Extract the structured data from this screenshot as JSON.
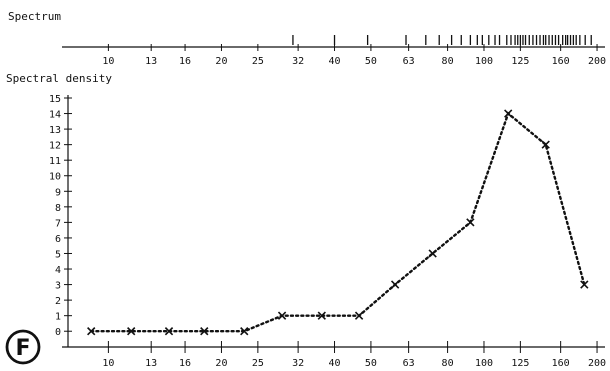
{
  "chart_data": [
    {
      "type": "rug",
      "title": "Spectrum",
      "x_ticks": [
        "10",
        "13",
        "16",
        "20",
        "25",
        "32",
        "40",
        "50",
        "63",
        "80",
        "100",
        "125",
        "160",
        "200"
      ],
      "x_scale": "log",
      "xlim": [
        8,
        210
      ],
      "marks": [
        31,
        40,
        49,
        62,
        70,
        76,
        82,
        87,
        92,
        96,
        99,
        103,
        107,
        110,
        115,
        118,
        121,
        123,
        125,
        127,
        129,
        132,
        135,
        138,
        141,
        144,
        146,
        149,
        152,
        155,
        158,
        162,
        165,
        167,
        170,
        173,
        176,
        180,
        186,
        193
      ]
    },
    {
      "type": "line",
      "ylabel": "Spectral density",
      "x_ticks": [
        "10",
        "13",
        "16",
        "20",
        "25",
        "32",
        "40",
        "50",
        "63",
        "80",
        "100",
        "125",
        "160",
        "200"
      ],
      "x_scale": "log",
      "xlim": [
        8,
        210
      ],
      "y_ticks": [
        "0",
        "1",
        "2",
        "3",
        "4",
        "5",
        "6",
        "7",
        "8",
        "9",
        "10",
        "11",
        "12",
        "13",
        "14",
        "15"
      ],
      "ylim": [
        -0.5,
        15
      ],
      "line_style": "dotted",
      "marker": "x",
      "series": [
        {
          "x": [
            9,
            11.5,
            14.5,
            18,
            23,
            29,
            37,
            46.5,
            58,
            73,
            92,
            116,
            146,
            185
          ],
          "values": [
            0,
            0,
            0,
            0,
            0,
            1,
            1,
            1,
            3,
            5,
            7,
            14,
            12,
            3
          ]
        }
      ]
    }
  ],
  "panel_label": "F"
}
